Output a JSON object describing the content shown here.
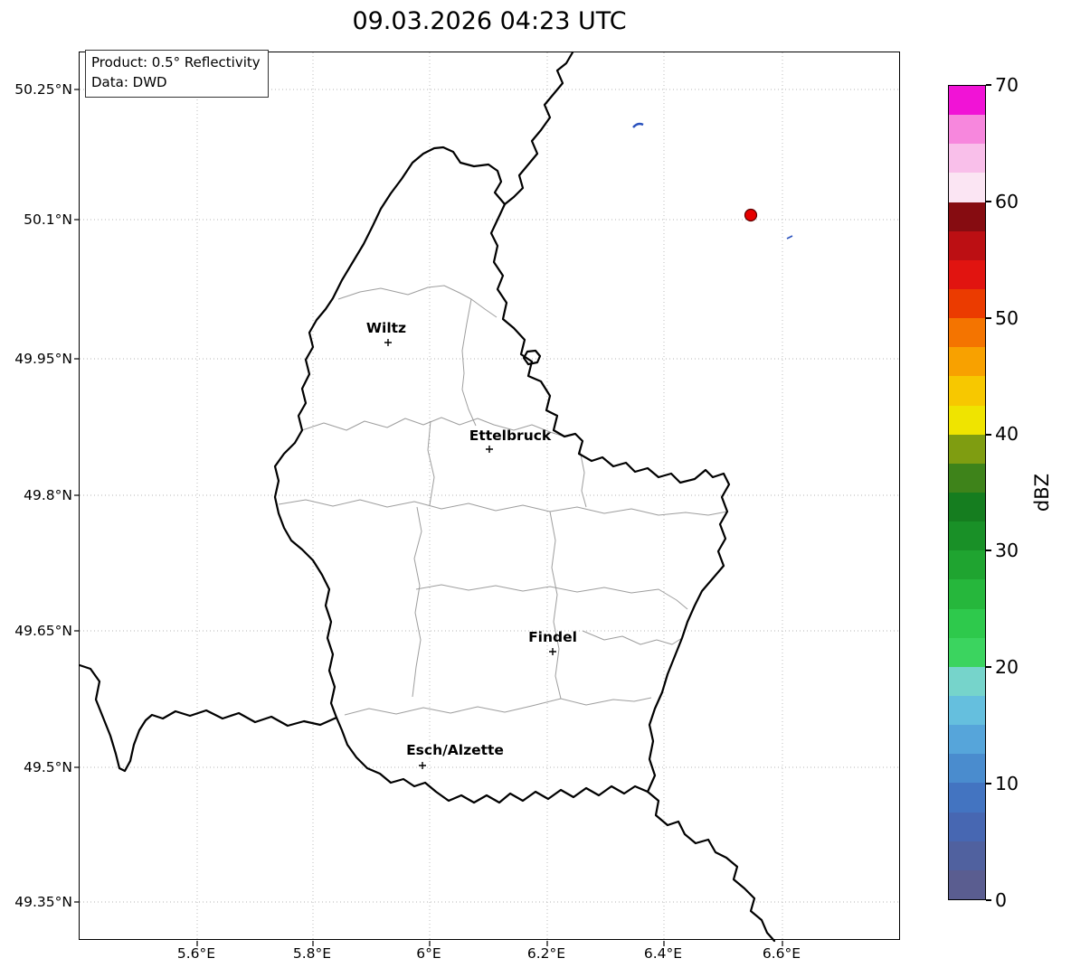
{
  "title": "09.03.2026 04:23 UTC",
  "info_box": {
    "product": "Product: 0.5° Reflectivity",
    "source": "Data: DWD"
  },
  "axes": {
    "y_ticks": [
      "50.25°N",
      "50.1°N",
      "49.95°N",
      "49.8°N",
      "49.65°N",
      "49.5°N",
      "49.35°N"
    ],
    "x_ticks": [
      "5.6°E",
      "5.8°E",
      "6°E",
      "6.2°E",
      "6.4°E",
      "6.6°E"
    ]
  },
  "cities": [
    {
      "name": "Wiltz"
    },
    {
      "name": "Ettelbruck"
    },
    {
      "name": "Findel"
    },
    {
      "name": "Esch/Alzette"
    }
  ],
  "colorbar": {
    "label": "dBZ",
    "ticks": [
      "0",
      "10",
      "20",
      "30",
      "40",
      "50",
      "60",
      "70"
    ],
    "unit_min": 0,
    "unit_max": 70,
    "colors": [
      "#5A5D90",
      "#50619F",
      "#4767B2",
      "#4374C1",
      "#4A8CCE",
      "#56A5DA",
      "#65BFDE",
      "#76D4CB",
      "#3BD45F",
      "#2EC94C",
      "#26B73C",
      "#1FA430",
      "#199027",
      "#157D1F",
      "#3E831A",
      "#7F9D11",
      "#EFE400",
      "#F7C800",
      "#F8A100",
      "#F47400",
      "#EB3B00",
      "#E11410",
      "#BC0F13",
      "#860C11",
      "#FBE5F3",
      "#F9BFEA",
      "#F787DD",
      "#F113D6"
    ]
  },
  "map": {
    "country_border_color": "#000000",
    "district_border_color": "#9e9e9e",
    "grid_color": "#b5b5b5",
    "echo_red": "#e50000",
    "echo_red_edge": "#5a0000",
    "echo_blue": "#2a52be"
  }
}
